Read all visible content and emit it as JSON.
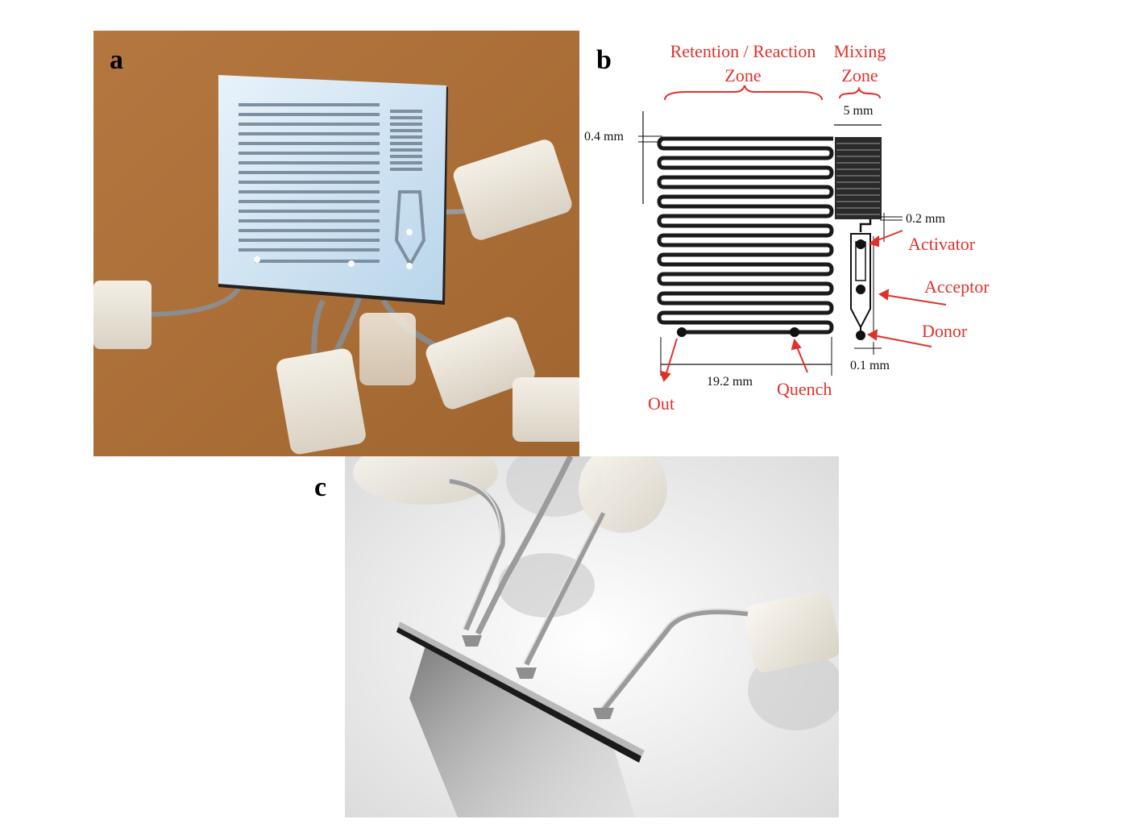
{
  "figure": {
    "panels": [
      {
        "id": "a",
        "label": "a"
      },
      {
        "id": "b",
        "label": "b"
      },
      {
        "id": "c",
        "label": "c"
      }
    ],
    "diagram_b": {
      "zone_retention_line1": "Retention / Reaction",
      "zone_retention_line2": "Zone",
      "zone_mixing_line1": "Mixing",
      "zone_mixing_line2": "Zone",
      "dim_channel_width": "0.4 mm",
      "dim_mixing_width": "5 mm",
      "dim_gap": "0.2 mm",
      "dim_length": "19.2 mm",
      "dim_small": "0.1 mm",
      "port_activator": "Activator",
      "port_acceptor": "Acceptor",
      "port_donor": "Donor",
      "port_out": "Out",
      "port_quench": "Quench"
    },
    "colors": {
      "annotation_red": "#e0302a",
      "photo_background_brown": "#b0723f",
      "chip_glass": "#cfe3f2"
    }
  }
}
